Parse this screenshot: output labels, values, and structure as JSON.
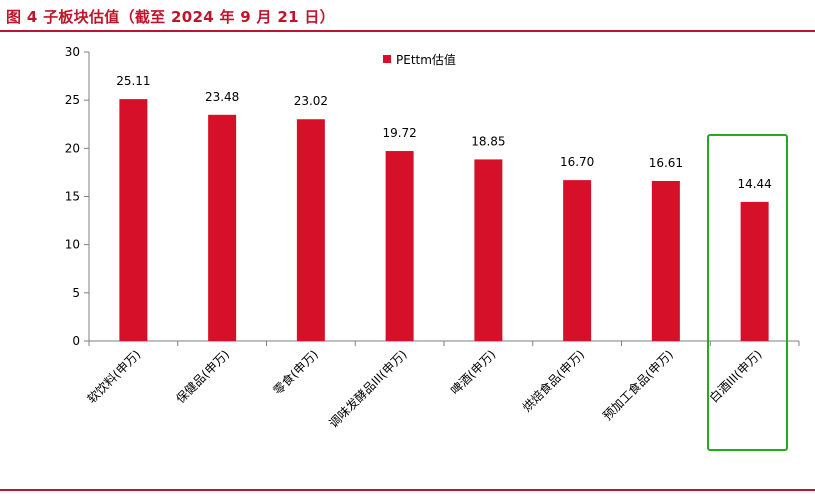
{
  "figure": {
    "title": "图 4   子板块估值（截至 2024 年 9 月 21 日）"
  },
  "colors": {
    "title_color": "#c0142a",
    "bar_color": "#d7102a",
    "rule_color": "#c0142a",
    "highlight_box": "#22aa22",
    "axis_color": "#7f7f7f"
  },
  "chart_data": {
    "type": "bar",
    "categories": [
      "软饮料(申万)",
      "保健品(申万)",
      "零食(申万)",
      "调味发酵品III(申万)",
      "啤酒(申万)",
      "烘焙食品(申万)",
      "预加工食品(申万)",
      "白酒III(申万)"
    ],
    "series": [
      {
        "name": "PEttm估值",
        "values": [
          25.11,
          23.48,
          23.02,
          19.72,
          18.85,
          16.7,
          16.61,
          14.44
        ],
        "labels": [
          "25.11",
          "23.48",
          "23.02",
          "19.72",
          "18.85",
          "16.70",
          "16.61",
          "14.44"
        ]
      }
    ],
    "ylim": [
      0,
      30
    ],
    "yticks": [
      "0",
      "5",
      "10",
      "15",
      "20",
      "25",
      "30"
    ],
    "ytick_values": [
      0,
      5,
      10,
      15,
      20,
      25,
      30
    ],
    "legend_position": "top",
    "grid": false,
    "highlight_category_index": 7
  }
}
